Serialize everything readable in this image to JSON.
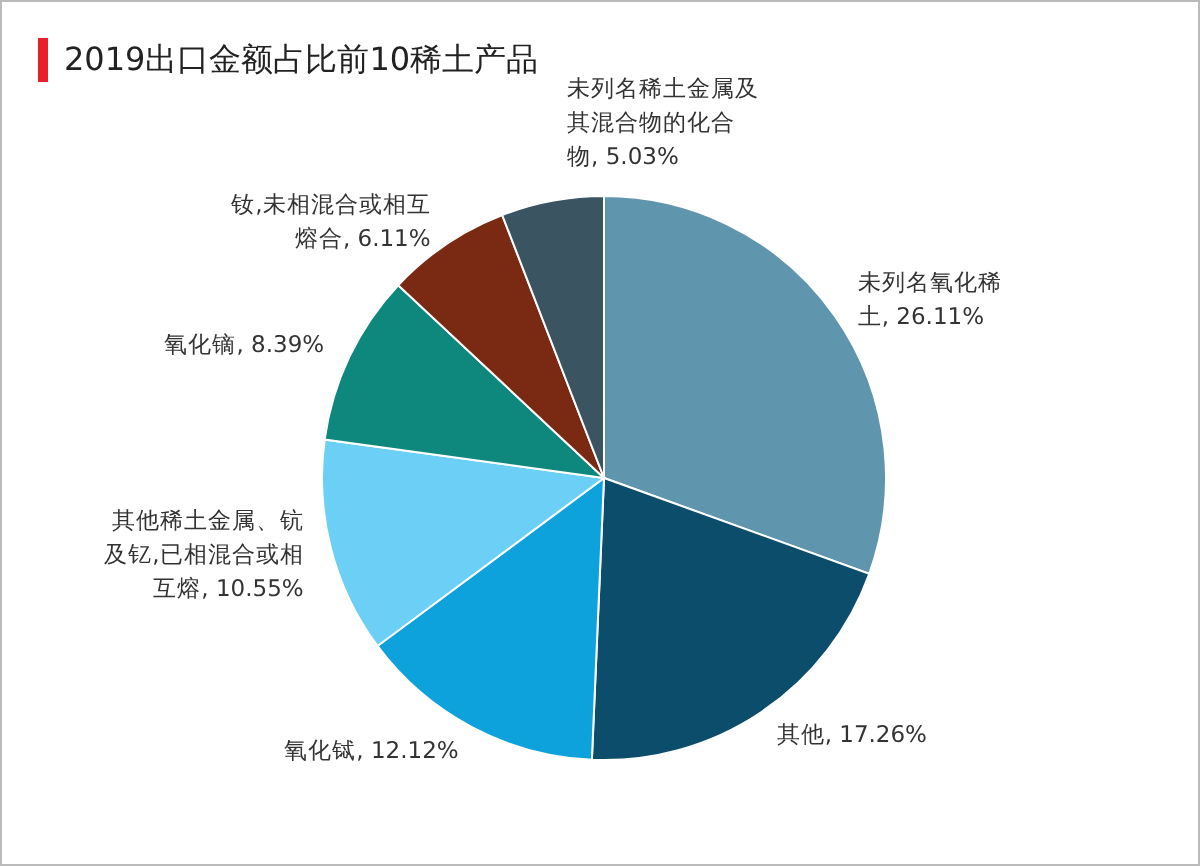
{
  "chart_data": {
    "type": "pie",
    "title": "2019出口金额占比前10稀土产品",
    "categories": [
      "未列名氧化稀土",
      "其他",
      "氧化铽",
      "其他稀土金属、钪及钇,已相混合或相互熔",
      "氧化镝",
      "钕,未相混合或相互熔合",
      "未列名稀土金属及其混合物的化合物"
    ],
    "values": [
      26.11,
      17.26,
      12.12,
      10.55,
      8.39,
      6.11,
      5.03
    ],
    "value_labels": [
      ", 26.11%",
      ", 17.26%",
      ", 12.12%",
      ", 10.55%",
      ", 8.39%",
      ", 6.11%",
      ", 5.03%"
    ],
    "colors": [
      "#5f95ad",
      "#0b4d6a",
      "#0ea2dc",
      "#6ccff5",
      "#0e877c",
      "#7a2913",
      "#3b5462"
    ]
  }
}
